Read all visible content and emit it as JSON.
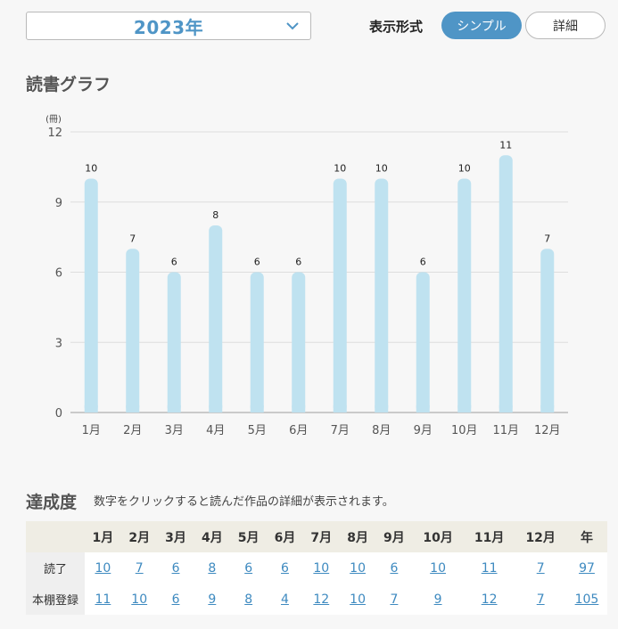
{
  "year_select": {
    "value": "2023年"
  },
  "display": {
    "label": "表示形式",
    "simple": "シンプル",
    "detail": "詳細"
  },
  "graph": {
    "title": "読書グラフ"
  },
  "chart_data": {
    "type": "bar",
    "categories": [
      "1月",
      "2月",
      "3月",
      "4月",
      "5月",
      "6月",
      "7月",
      "8月",
      "9月",
      "10月",
      "11月",
      "12月"
    ],
    "values": [
      10,
      7,
      6,
      8,
      6,
      6,
      10,
      10,
      6,
      10,
      11,
      7
    ],
    "ylabel": "(冊)",
    "ylim": [
      0,
      12
    ],
    "yticks": [
      0,
      3,
      6,
      9,
      12
    ],
    "grid": true,
    "bar_color": "#bfe2f0"
  },
  "achievement": {
    "title": "達成度",
    "hint": "数字をクリックすると読んだ作品の詳細が表示されます。",
    "headers": [
      "",
      "1月",
      "2月",
      "3月",
      "4月",
      "5月",
      "6月",
      "7月",
      "8月",
      "9月",
      "10月",
      "11月",
      "12月",
      "年"
    ],
    "rows": [
      {
        "label": "読了",
        "values": [
          "10",
          "7",
          "6",
          "8",
          "6",
          "6",
          "10",
          "10",
          "6",
          "10",
          "11",
          "7",
          "97"
        ]
      },
      {
        "label": "本棚登録",
        "values": [
          "11",
          "10",
          "6",
          "9",
          "8",
          "4",
          "12",
          "10",
          "7",
          "9",
          "12",
          "7",
          "105"
        ]
      }
    ]
  },
  "colors": {
    "accent": "#4f95c6",
    "link": "#3e8ac0",
    "bar": "#bfe2f0"
  }
}
